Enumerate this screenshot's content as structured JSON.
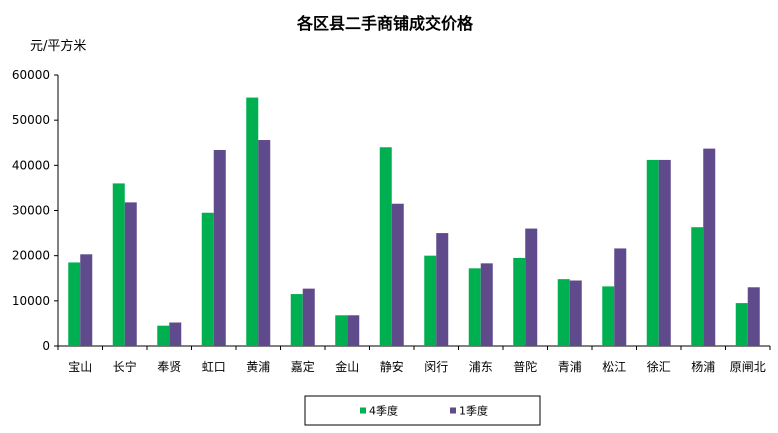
{
  "chart_data": {
    "type": "bar",
    "title": "各区县二手商铺成交价格",
    "ylabel": "元/平方米",
    "xlabel": "",
    "ylim": [
      0,
      60000
    ],
    "yticks": [
      0,
      10000,
      20000,
      30000,
      40000,
      50000,
      60000
    ],
    "grid": false,
    "legend_position": "bottom",
    "categories": [
      "宝山",
      "长宁",
      "奉贤",
      "虹口",
      "黄浦",
      "嘉定",
      "金山",
      "静安",
      "闵行",
      "浦东",
      "普陀",
      "青浦",
      "松江",
      "徐汇",
      "杨浦",
      "原闸北"
    ],
    "series": [
      {
        "name": "4季度",
        "color": "#00b050",
        "values": [
          18500,
          36000,
          4500,
          29500,
          55000,
          11500,
          6800,
          44000,
          20000,
          17200,
          19500,
          14800,
          13200,
          41200,
          26300,
          9500
        ]
      },
      {
        "name": "1季度",
        "color": "#5f4a8b",
        "values": [
          20300,
          31800,
          5200,
          43400,
          45600,
          12700,
          6800,
          31500,
          25000,
          18300,
          26000,
          14500,
          21600,
          41200,
          43700,
          13000
        ]
      }
    ]
  }
}
